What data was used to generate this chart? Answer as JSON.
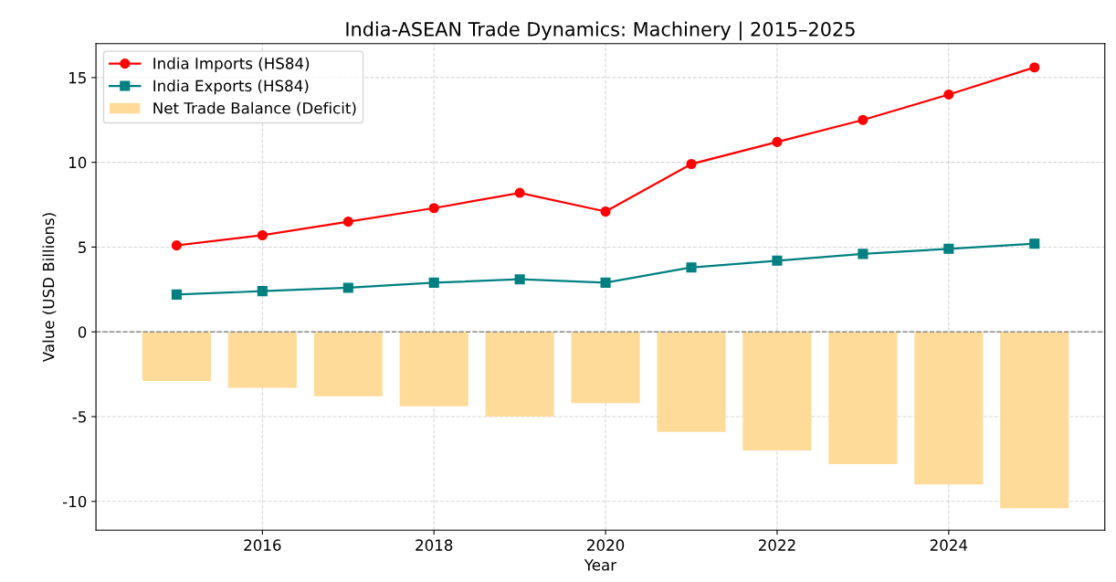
{
  "chart_data": {
    "type": "line",
    "title": "India-ASEAN Trade Dynamics: Machinery | 2015–2025",
    "xlabel": "Year",
    "ylabel": "Value (USD Billions)",
    "x": [
      2015,
      2016,
      2017,
      2018,
      2019,
      2020,
      2021,
      2022,
      2023,
      2024,
      2025
    ],
    "series": [
      {
        "name": "India Imports (HS84)",
        "color": "#ff0000",
        "marker": "circle",
        "values": [
          5.1,
          5.7,
          6.5,
          7.3,
          8.2,
          7.1,
          9.9,
          11.2,
          12.5,
          14.0,
          15.6
        ]
      },
      {
        "name": "India Exports (HS84)",
        "color": "#008080",
        "marker": "square",
        "values": [
          2.2,
          2.4,
          2.6,
          2.9,
          3.1,
          2.9,
          3.8,
          4.2,
          4.6,
          4.9,
          5.2
        ]
      },
      {
        "name": "Net Trade Balance (Deficit)",
        "type": "bar",
        "color": "#ffdb99",
        "values": [
          -2.9,
          -3.3,
          -3.8,
          -4.4,
          -5.0,
          -4.2,
          -5.9,
          -7.0,
          -7.8,
          -9.0,
          -10.4
        ]
      }
    ],
    "xlim": [
      2014.06,
      2025.82
    ],
    "xticks": [
      2016,
      2018,
      2020,
      2022,
      2024
    ],
    "ylim": [
      -11.7,
      17
    ],
    "yticks": [
      -10,
      -5,
      0,
      5,
      10,
      15
    ],
    "ref_lines": [
      {
        "axis": "y",
        "value": 0,
        "color": "#888888",
        "line_style": "dashed"
      }
    ],
    "grid": true,
    "legend": "top left",
    "line_style": "solid"
  }
}
